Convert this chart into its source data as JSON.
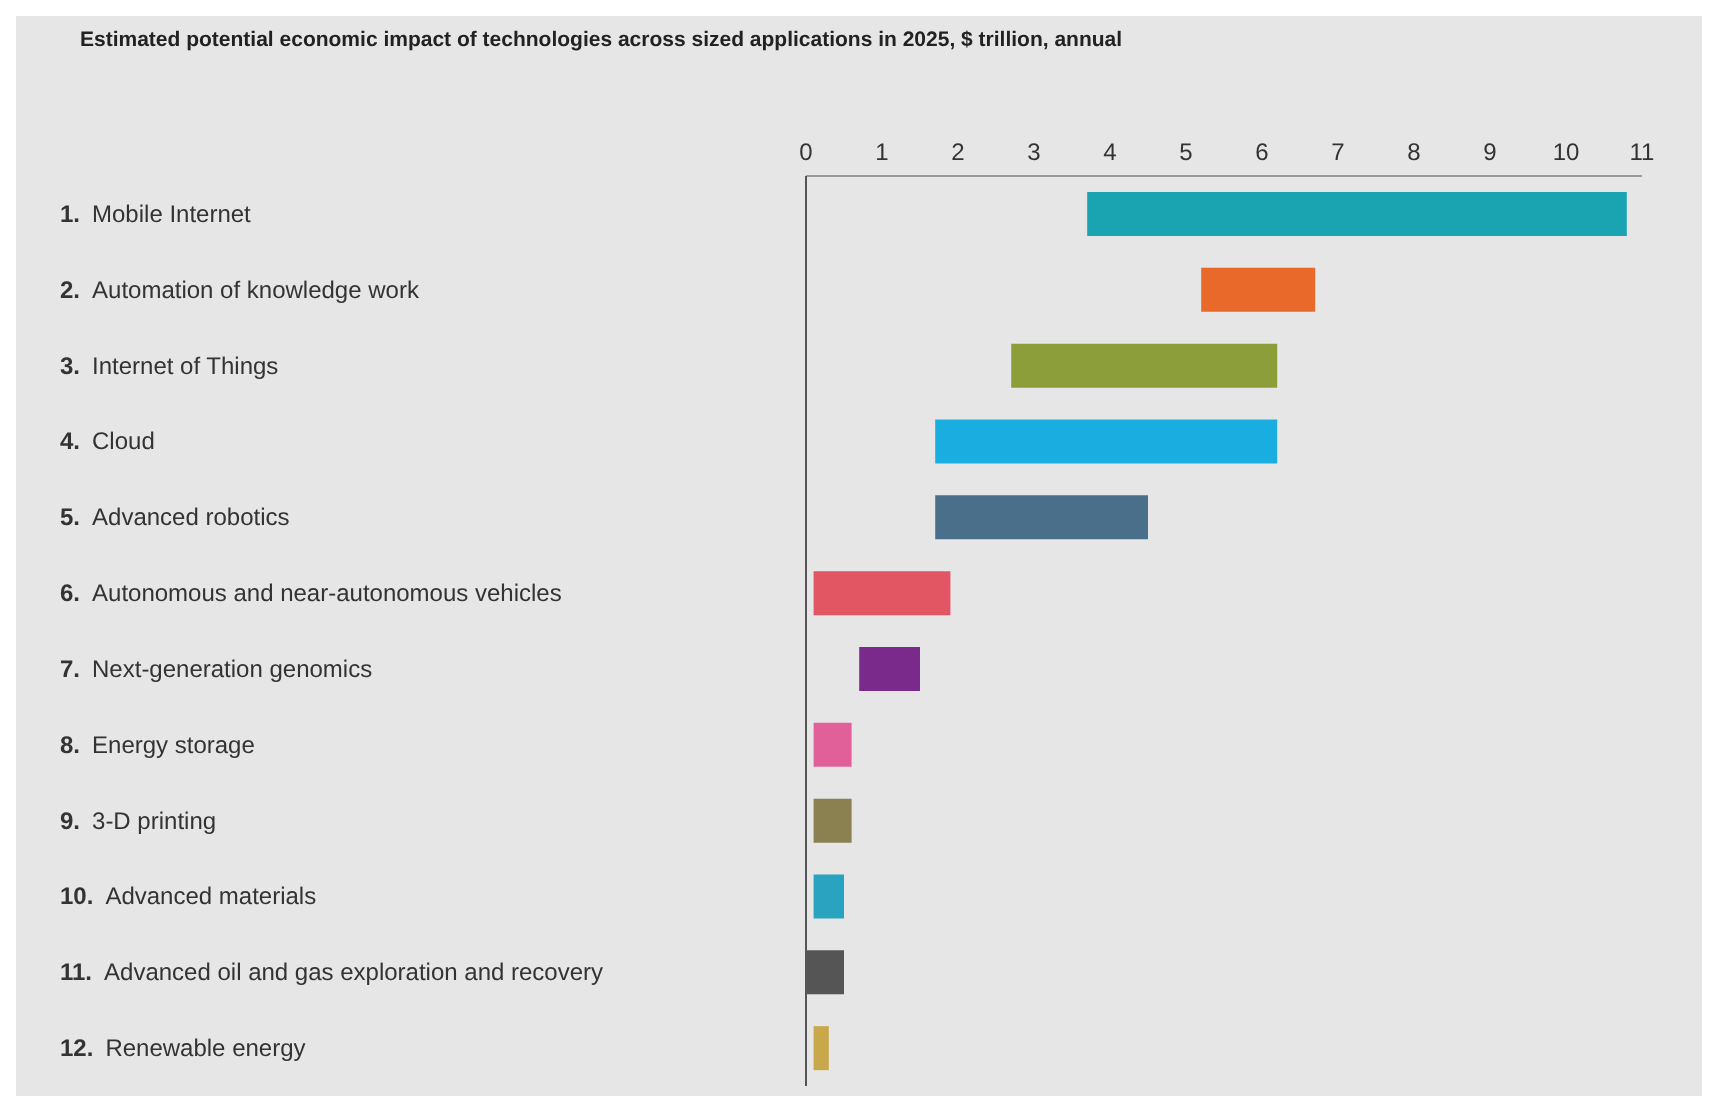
{
  "chart_data": {
    "type": "bar",
    "orientation": "horizontal",
    "title": "Estimated potential economic impact of technologies across sized applications in 2025, $ trillion, annual",
    "categories": [
      "1. Mobile Internet",
      "2. Automation of knowledge work",
      "3. Internet of Things",
      "4. Cloud",
      "5. Advanced robotics",
      "6. Autonomous and near-autonomous vehicles",
      "7. Next-generation genomics",
      "8. Energy storage",
      "9. 3-D printing",
      "10. Advanced materials",
      "11. Advanced oil and gas exploration and recovery",
      "12. Renewable energy"
    ],
    "base": [
      3.7,
      5.2,
      2.7,
      1.7,
      1.7,
      0.1,
      0.7,
      0.1,
      0.1,
      0.1,
      0,
      0.1
    ],
    "values": [
      7.1,
      1.5,
      3.5,
      4.5,
      2.8,
      1.8,
      0.8,
      0.5,
      0.5,
      0.4,
      0.5,
      0.2
    ],
    "colors": [
      "#1aa3b0",
      "#e8692a",
      "#8c9e3a",
      "#1aaee0",
      "#4a6f8a",
      "#e25563",
      "#7a2a8a",
      "#e2609a",
      "#8a8050",
      "#2aa3c0",
      "#555555",
      "#c8a84a"
    ],
    "xlim": [
      0,
      11
    ],
    "xticks": [
      0,
      1,
      2,
      3,
      4,
      5,
      6,
      7,
      8,
      9,
      10,
      11
    ],
    "grid": false,
    "legend": false
  }
}
